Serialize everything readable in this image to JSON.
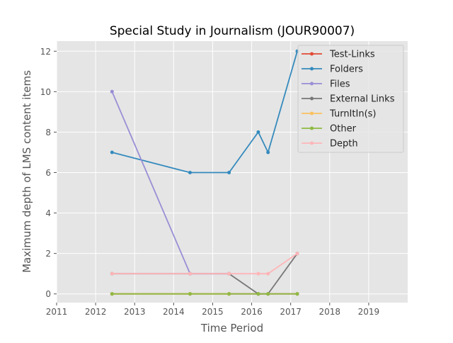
{
  "chart_data": {
    "type": "line",
    "title": "Special Study in Journalism (JOUR90007)",
    "xlabel": "Time Period",
    "ylabel": "Maximum depth of LMS content items",
    "xlim": [
      2011,
      2020
    ],
    "ylim": [
      -0.43,
      12.5
    ],
    "x_ticks": [
      "2011",
      "2012",
      "2013",
      "2014",
      "2015",
      "2016",
      "2017",
      "2018",
      "2019"
    ],
    "y_ticks": [
      "0",
      "2",
      "4",
      "6",
      "8",
      "10",
      "12"
    ],
    "grid": true,
    "legend_position": "top-right",
    "x": [
      2012.42,
      2014.42,
      2015.42,
      2016.17,
      2016.42,
      2017.17
    ],
    "series": [
      {
        "name": "Test-Links",
        "color": "#E24A33",
        "values": [
          0,
          0,
          0,
          0,
          0,
          0
        ]
      },
      {
        "name": "Folders",
        "color": "#348ABD",
        "values": [
          7,
          6,
          6,
          8,
          7,
          12
        ]
      },
      {
        "name": "Files",
        "color": "#988ED5",
        "values": [
          10,
          1,
          1,
          null,
          null,
          null
        ]
      },
      {
        "name": "External Links",
        "color": "#777777",
        "values": [
          1,
          1,
          1,
          0,
          0,
          2
        ]
      },
      {
        "name": "TurnItIn(s)",
        "color": "#FBC15E",
        "values": [
          0,
          0,
          0,
          null,
          null,
          null
        ]
      },
      {
        "name": "Other",
        "color": "#8EBA42",
        "values": [
          0,
          0,
          0,
          0,
          0,
          0
        ]
      },
      {
        "name": "Depth",
        "color": "#FFB5B8",
        "values": [
          1,
          1,
          1,
          1,
          1,
          2
        ]
      }
    ]
  }
}
